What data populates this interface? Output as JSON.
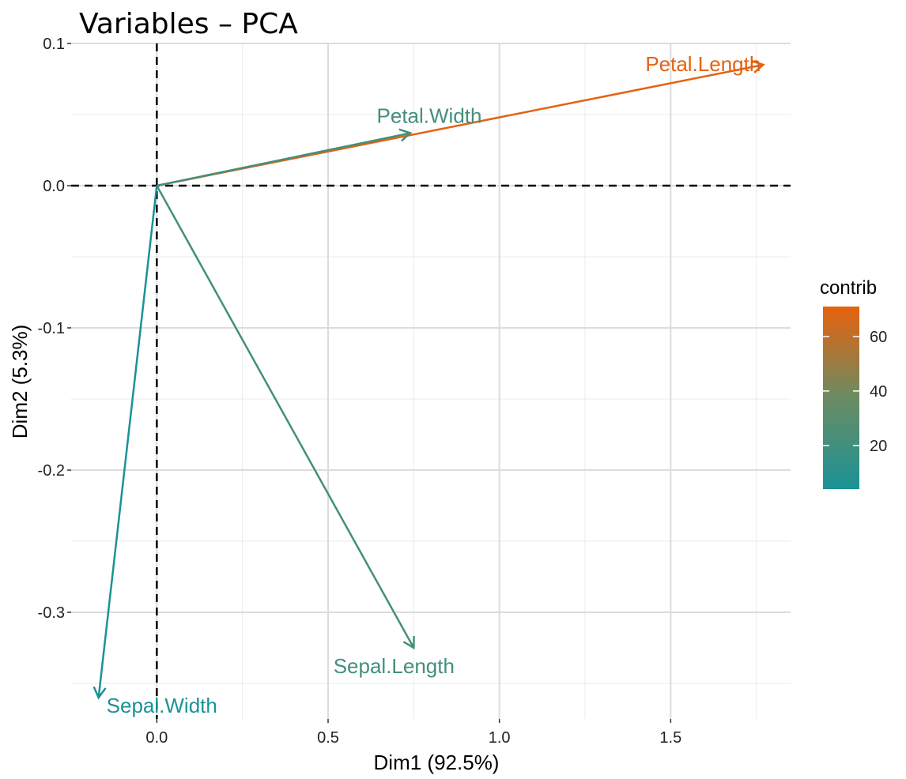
{
  "chart_data": {
    "type": "scatter",
    "title": "Variables – PCA",
    "xlabel": "Dim1 (92.5%)",
    "ylabel": "Dim2 (5.3%)",
    "xlim": [
      -0.25,
      1.85
    ],
    "ylim": [
      -0.375,
      0.1
    ],
    "x_ticks": [
      0.0,
      0.5,
      1.0,
      1.5
    ],
    "x_tick_labels": [
      "0.0",
      "0.5",
      "1.0",
      "1.5"
    ],
    "y_ticks": [
      0.1,
      0.0,
      -0.1,
      -0.2,
      -0.3
    ],
    "y_tick_labels": [
      "0.1",
      "0.0",
      "-0.1",
      "-0.2",
      "-0.3"
    ],
    "grid": true,
    "reference_lines": {
      "x": 0,
      "y": 0,
      "style": "dashed"
    },
    "vectors": [
      {
        "name": "Petal.Length",
        "x": 1.77,
        "y": 0.085,
        "contrib": 70
      },
      {
        "name": "Petal.Width",
        "x": 0.74,
        "y": 0.037,
        "contrib": 21
      },
      {
        "name": "Sepal.Length",
        "x": 0.75,
        "y": -0.325,
        "contrib": 21
      },
      {
        "name": "Sepal.Width",
        "x": -0.17,
        "y": -0.36,
        "contrib": 4
      }
    ],
    "legend": {
      "title": "contrib",
      "position": "right",
      "range": [
        4,
        71
      ],
      "ticks": [
        20,
        40,
        60
      ],
      "tick_labels": [
        "20",
        "40",
        "60"
      ],
      "colors": {
        "low": "#1a9296",
        "mid": "#6b8c62",
        "high": "#e8610e"
      }
    }
  }
}
